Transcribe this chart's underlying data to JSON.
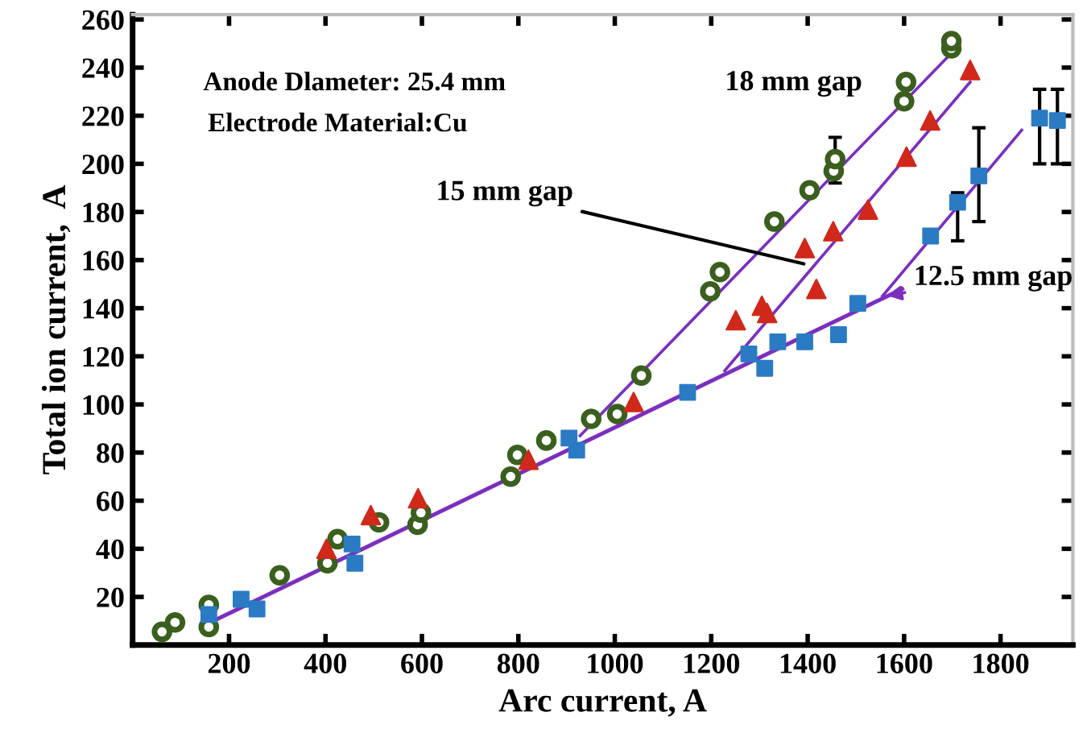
{
  "chart_data": {
    "type": "scatter",
    "xlabel": "Arc current, A",
    "ylabel": "Total ion current,  A",
    "xlim": [
      0,
      1950
    ],
    "ylim": [
      0,
      262
    ],
    "xticks": [
      200,
      400,
      600,
      800,
      1000,
      1200,
      1400,
      1600,
      1800
    ],
    "yticks": [
      20,
      40,
      60,
      80,
      100,
      120,
      140,
      160,
      180,
      200,
      220,
      240,
      260
    ],
    "grid": false,
    "legend": false,
    "series": [
      {
        "type": "line",
        "color": "#7b2fbe",
        "marker": "none",
        "x": [
          161,
          1596
        ],
        "values": [
          9.4,
          148
        ]
      },
      {
        "type": "line",
        "color": "#7b2fbe",
        "marker": "none",
        "x": [
          928,
          1698
        ],
        "values": [
          87,
          246
        ]
      },
      {
        "type": "line",
        "color": "#7b2fbe",
        "marker": "none",
        "x": [
          1228,
          1737
        ],
        "values": [
          114,
          234
        ]
      },
      {
        "type": "line",
        "color": "#7b2fbe",
        "marker": "none",
        "x": [
          1555,
          1844
        ],
        "values": [
          145,
          214
        ]
      },
      {
        "color": "#3a5f1e",
        "marker": "circle",
        "x": [
          61,
          88,
          158,
          158,
          305,
          404,
          425,
          511,
          591,
          598,
          784,
          798,
          858,
          951,
          1005,
          1055,
          1198,
          1218,
          1331,
          1404,
          1454,
          1457,
          1600,
          1604,
          1698,
          1698
        ],
        "values": [
          5.5,
          9.4,
          16.7,
          7.5,
          29,
          34,
          44,
          51,
          50,
          55,
          70,
          79,
          85,
          94,
          96,
          112,
          147,
          155,
          176,
          189,
          197,
          202,
          226,
          234,
          248,
          251
        ],
        "errors": [
          null,
          null,
          null,
          null,
          null,
          null,
          null,
          null,
          null,
          null,
          null,
          null,
          null,
          null,
          null,
          null,
          null,
          null,
          null,
          null,
          null,
          [
            192,
            211
          ],
          null,
          null,
          null,
          null
        ]
      },
      {
        "color": "#d0281a",
        "marker": "triangle",
        "x": [
          402,
          494,
          592,
          821,
          1039,
          1251,
          1305,
          1316,
          1418,
          1394,
          1453,
          1525,
          1605,
          1654,
          1737
        ],
        "values": [
          40,
          54,
          61,
          77,
          101,
          135,
          141,
          138,
          148,
          165,
          172,
          181,
          203,
          218,
          239
        ]
      },
      {
        "color": "#2a7bc4",
        "marker": "square",
        "x": [
          158,
          225,
          258,
          455,
          461,
          905,
          921,
          1151,
          1278,
          1311,
          1338,
          1394,
          1464,
          1504,
          1655,
          1711,
          1755,
          1881,
          1918
        ],
        "values": [
          12.7,
          19,
          15,
          42,
          34,
          86,
          81,
          105,
          121,
          115,
          126,
          126,
          129,
          142,
          170,
          184,
          195,
          219,
          218
        ],
        "errors": [
          null,
          null,
          null,
          null,
          null,
          null,
          null,
          null,
          null,
          null,
          null,
          null,
          null,
          null,
          null,
          [
            168,
            188
          ],
          [
            176,
            215
          ],
          [
            200,
            231
          ],
          [
            200,
            231
          ]
        ]
      }
    ],
    "annotations": [
      "Anode Dlameter: 25.4 mm",
      "Electrode Material:Cu",
      "18 mm gap",
      {
        "text": "15 mm gap",
        "x": 1401,
        "y": 158
      },
      {
        "text": "12.5 mm gap",
        "x": 1555,
        "y": 145
      }
    ]
  }
}
